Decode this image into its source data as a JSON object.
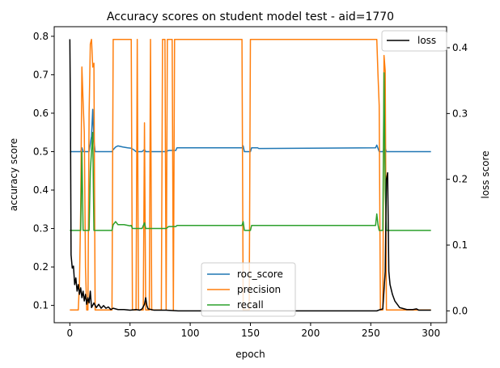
{
  "chart_data": {
    "type": "line",
    "title": "Accuracy scores on student model test - aid=1770",
    "xlabel": "epoch",
    "ylabel_left": "accuracy score",
    "ylabel_right": "loss score",
    "xlim": [
      -13,
      313
    ],
    "ylim_left": [
      0.055,
      0.825
    ],
    "ylim_right": [
      -0.018,
      0.432
    ],
    "x_ticks": [
      0,
      50,
      100,
      150,
      200,
      250,
      300
    ],
    "y_left_ticks": [
      0.1,
      0.2,
      0.3,
      0.4,
      0.5,
      0.6,
      0.7,
      0.8
    ],
    "y_right_ticks": [
      0.0,
      0.1,
      0.2,
      0.3,
      0.4
    ],
    "legend_left": {
      "placement": "lower-center",
      "entries": [
        "roc_score",
        "precision",
        "recall"
      ]
    },
    "legend_right": {
      "placement": "upper-right",
      "entries": [
        "loss"
      ]
    },
    "series": [
      {
        "name": "roc_score",
        "axis": "left",
        "color": "#1f77b4",
        "points": [
          [
            0,
            0.5
          ],
          [
            9,
            0.5
          ],
          [
            10,
            0.51
          ],
          [
            11,
            0.5
          ],
          [
            16,
            0.5
          ],
          [
            18,
            0.54
          ],
          [
            19,
            0.61
          ],
          [
            20,
            0.53
          ],
          [
            21,
            0.5
          ],
          [
            35,
            0.5
          ],
          [
            36,
            0.505
          ],
          [
            38,
            0.512
          ],
          [
            40,
            0.515
          ],
          [
            44,
            0.512
          ],
          [
            48,
            0.51
          ],
          [
            51,
            0.509
          ],
          [
            53,
            0.505
          ],
          [
            55,
            0.5
          ],
          [
            60,
            0.5
          ],
          [
            62,
            0.506
          ],
          [
            63,
            0.5
          ],
          [
            80,
            0.5
          ],
          [
            82,
            0.503
          ],
          [
            88,
            0.503
          ],
          [
            89,
            0.51
          ],
          [
            143,
            0.51
          ],
          [
            144,
            0.515
          ],
          [
            145,
            0.5
          ],
          [
            150,
            0.5
          ],
          [
            151,
            0.51
          ],
          [
            156,
            0.51
          ],
          [
            157,
            0.508
          ],
          [
            254,
            0.51
          ],
          [
            255,
            0.517
          ],
          [
            257,
            0.5
          ],
          [
            260,
            0.5
          ],
          [
            262,
            0.51
          ],
          [
            263,
            0.5
          ],
          [
            300,
            0.5
          ]
        ]
      },
      {
        "name": "precision",
        "axis": "left",
        "color": "#ff7f0e",
        "points": [
          [
            0,
            0.088
          ],
          [
            7,
            0.088
          ],
          [
            8,
            0.16
          ],
          [
            9,
            0.35
          ],
          [
            10,
            0.72
          ],
          [
            11,
            0.63
          ],
          [
            12,
            0.55
          ],
          [
            13,
            0.2
          ],
          [
            14,
            0.088
          ],
          [
            15,
            0.088
          ],
          [
            16,
            0.6
          ],
          [
            17,
            0.78
          ],
          [
            18,
            0.792
          ],
          [
            19,
            0.72
          ],
          [
            20,
            0.73
          ],
          [
            21,
            0.088
          ],
          [
            35,
            0.088
          ],
          [
            36,
            0.792
          ],
          [
            51,
            0.792
          ],
          [
            52,
            0.088
          ],
          [
            55,
            0.088
          ],
          [
            56,
            0.792
          ],
          [
            57,
            0.088
          ],
          [
            61,
            0.088
          ],
          [
            62,
            0.575
          ],
          [
            63,
            0.088
          ],
          [
            66,
            0.088
          ],
          [
            67,
            0.792
          ],
          [
            68,
            0.088
          ],
          [
            76,
            0.088
          ],
          [
            77,
            0.792
          ],
          [
            79,
            0.792
          ],
          [
            80,
            0.088
          ],
          [
            81,
            0.792
          ],
          [
            85,
            0.792
          ],
          [
            86,
            0.088
          ],
          [
            87,
            0.792
          ],
          [
            143,
            0.792
          ],
          [
            144,
            0.088
          ],
          [
            149,
            0.088
          ],
          [
            150,
            0.792
          ],
          [
            255,
            0.792
          ],
          [
            256,
            0.7
          ],
          [
            257,
            0.62
          ],
          [
            258,
            0.088
          ],
          [
            260,
            0.088
          ],
          [
            261,
            0.75
          ],
          [
            262,
            0.71
          ],
          [
            263,
            0.088
          ],
          [
            300,
            0.088
          ]
        ]
      },
      {
        "name": "recall",
        "axis": "left",
        "color": "#2ca02c",
        "points": [
          [
            0,
            0.295
          ],
          [
            9,
            0.295
          ],
          [
            10,
            0.5
          ],
          [
            11,
            0.295
          ],
          [
            16,
            0.295
          ],
          [
            17,
            0.45
          ],
          [
            18,
            0.5
          ],
          [
            19,
            0.55
          ],
          [
            20,
            0.295
          ],
          [
            35,
            0.295
          ],
          [
            36,
            0.31
          ],
          [
            38,
            0.318
          ],
          [
            40,
            0.31
          ],
          [
            45,
            0.31
          ],
          [
            50,
            0.307
          ],
          [
            51,
            0.308
          ],
          [
            52,
            0.3
          ],
          [
            60,
            0.3
          ],
          [
            62,
            0.315
          ],
          [
            63,
            0.3
          ],
          [
            80,
            0.3
          ],
          [
            82,
            0.305
          ],
          [
            88,
            0.305
          ],
          [
            89,
            0.308
          ],
          [
            143,
            0.308
          ],
          [
            144,
            0.318
          ],
          [
            145,
            0.295
          ],
          [
            150,
            0.295
          ],
          [
            151,
            0.308
          ],
          [
            254,
            0.308
          ],
          [
            255,
            0.338
          ],
          [
            256,
            0.31
          ],
          [
            257,
            0.295
          ],
          [
            260,
            0.295
          ],
          [
            261,
            0.705
          ],
          [
            262,
            0.4
          ],
          [
            263,
            0.295
          ],
          [
            300,
            0.295
          ]
        ]
      },
      {
        "name": "loss",
        "axis": "right",
        "color": "#000000",
        "points": [
          [
            0,
            0.413
          ],
          [
            0.5,
            0.3
          ],
          [
            1,
            0.085
          ],
          [
            2,
            0.065
          ],
          [
            3,
            0.068
          ],
          [
            4,
            0.04
          ],
          [
            5,
            0.05
          ],
          [
            6,
            0.03
          ],
          [
            7,
            0.04
          ],
          [
            8,
            0.025
          ],
          [
            9,
            0.035
          ],
          [
            10,
            0.02
          ],
          [
            11,
            0.03
          ],
          [
            12,
            0.015
          ],
          [
            13,
            0.025
          ],
          [
            14,
            0.01
          ],
          [
            15,
            0.02
          ],
          [
            16,
            0.012
          ],
          [
            17,
            0.03
          ],
          [
            18,
            0.005
          ],
          [
            20,
            0.012
          ],
          [
            22,
            0.005
          ],
          [
            24,
            0.01
          ],
          [
            26,
            0.004
          ],
          [
            28,
            0.008
          ],
          [
            30,
            0.004
          ],
          [
            32,
            0.006
          ],
          [
            34,
            0.002
          ],
          [
            36,
            0.004
          ],
          [
            40,
            0.002
          ],
          [
            45,
            0.002
          ],
          [
            50,
            0.001
          ],
          [
            55,
            0.002
          ],
          [
            58,
            0.001
          ],
          [
            60,
            0.003
          ],
          [
            62,
            0.01
          ],
          [
            63,
            0.02
          ],
          [
            64,
            0.008
          ],
          [
            65,
            0.003
          ],
          [
            70,
            0.001
          ],
          [
            80,
            0.001
          ],
          [
            90,
            0.0
          ],
          [
            140,
            0.0
          ],
          [
            200,
            0.0
          ],
          [
            255,
            0.0
          ],
          [
            258,
            0.002
          ],
          [
            260,
            0.003
          ],
          [
            262,
            0.06
          ],
          [
            263,
            0.2
          ],
          [
            264,
            0.21
          ],
          [
            265,
            0.06
          ],
          [
            266,
            0.04
          ],
          [
            268,
            0.025
          ],
          [
            270,
            0.015
          ],
          [
            272,
            0.01
          ],
          [
            274,
            0.005
          ],
          [
            276,
            0.004
          ],
          [
            280,
            0.002
          ],
          [
            285,
            0.002
          ],
          [
            288,
            0.003
          ],
          [
            290,
            0.001
          ],
          [
            295,
            0.001
          ],
          [
            300,
            0.001
          ]
        ]
      }
    ]
  }
}
